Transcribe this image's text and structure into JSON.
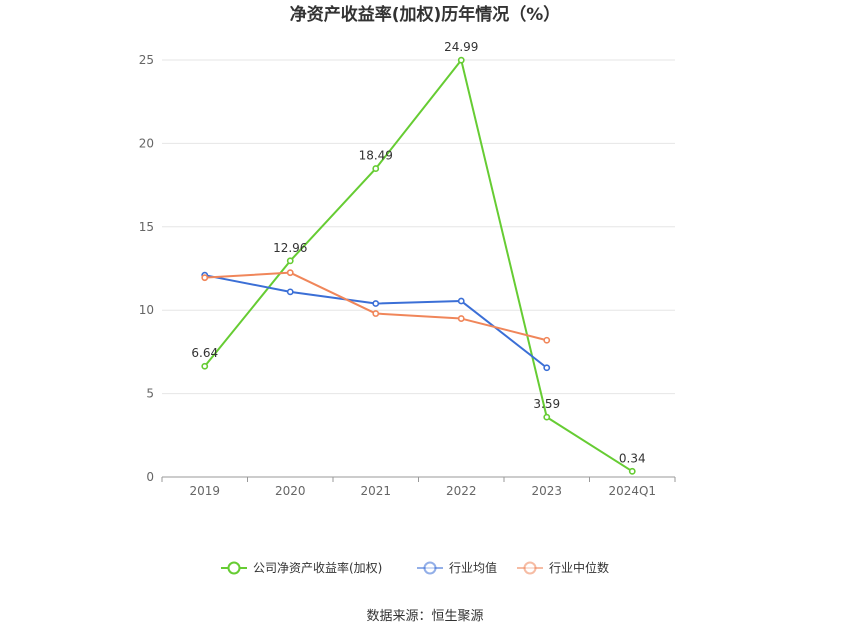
{
  "chart_data": {
    "type": "line",
    "title": "净资产收益率(加权)历年情况（%）",
    "categories": [
      "2019",
      "2020",
      "2021",
      "2022",
      "2023",
      "2024Q1"
    ],
    "ylim": [
      0,
      25
    ],
    "yticks": [
      0,
      5,
      10,
      15,
      20,
      25
    ],
    "grid": true,
    "legend_position": "bottom",
    "series": [
      {
        "name": "公司净资产收益率(加权)",
        "color": "#66cc33",
        "values": [
          6.64,
          12.96,
          18.49,
          24.99,
          3.59,
          0.34
        ],
        "labels": [
          "6.64",
          "12.96",
          "18.49",
          "24.99",
          "3.59",
          "0.34"
        ],
        "show_labels": true
      },
      {
        "name": "行业均值",
        "color": "#3b6fd6",
        "values": [
          12.1,
          11.1,
          10.4,
          10.55,
          6.55,
          null
        ],
        "show_labels": false
      },
      {
        "name": "行业中位数",
        "color": "#f0865a",
        "values": [
          11.95,
          12.25,
          9.8,
          9.5,
          8.2,
          null
        ],
        "show_labels": false
      }
    ]
  },
  "source": "数据来源：恒生聚源"
}
